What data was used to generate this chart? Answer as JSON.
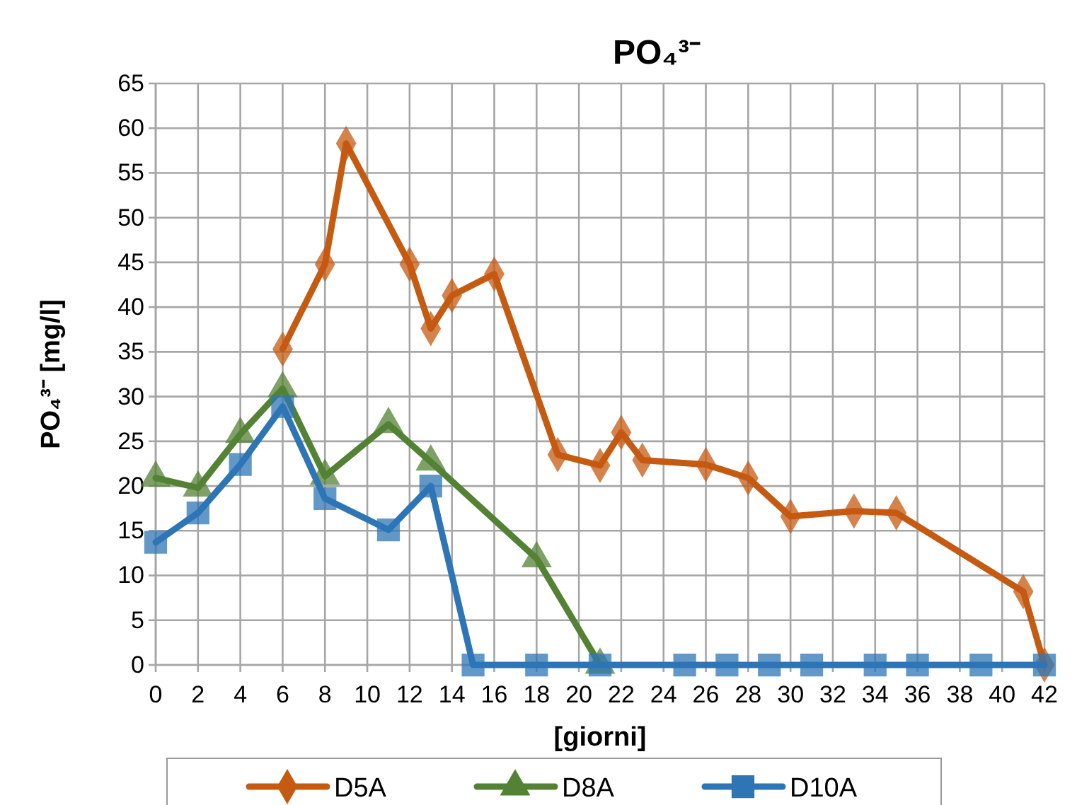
{
  "chart_data": {
    "type": "line",
    "title": "PO₄³⁻",
    "xlabel": "[giorni]",
    "ylabel": "PO₄³⁻ [mg/l]",
    "xlim": [
      0,
      42
    ],
    "xticks": [
      0,
      2,
      4,
      6,
      8,
      10,
      12,
      14,
      16,
      18,
      20,
      22,
      24,
      26,
      28,
      30,
      32,
      34,
      36,
      38,
      40,
      42
    ],
    "ylim": [
      0,
      65
    ],
    "yticks": [
      0,
      5,
      10,
      15,
      20,
      25,
      30,
      35,
      40,
      45,
      50,
      55,
      60,
      65
    ],
    "grid": true,
    "legend": "bottom",
    "line_style": "solid",
    "series": [
      {
        "name": "D5A",
        "color": "#c55a11",
        "marker": "diamond",
        "x": [
          6,
          8,
          9,
          12,
          13,
          14,
          16,
          19,
          21,
          22,
          23,
          26,
          28,
          30,
          33,
          35,
          41,
          42
        ],
        "values": [
          35.3,
          44.8,
          58.3,
          44.8,
          37.6,
          41.3,
          43.7,
          23.5,
          22.3,
          26,
          22.9,
          22.4,
          20.9,
          16.6,
          17.2,
          17,
          8.2,
          0
        ]
      },
      {
        "name": "D8A",
        "color": "#548235",
        "marker": "triangle",
        "x": [
          0,
          2,
          4,
          6,
          8,
          11,
          13,
          18,
          21
        ],
        "values": [
          20.9,
          19.8,
          25.8,
          30.9,
          21.1,
          26.9,
          22.7,
          11.9,
          0
        ]
      },
      {
        "name": "D10A",
        "color": "#2e75b6",
        "marker": "square",
        "x": [
          0,
          2,
          4,
          6,
          8,
          11,
          13,
          15,
          18,
          21,
          25,
          27,
          29,
          31,
          34,
          36,
          39,
          42
        ],
        "values": [
          13.7,
          17,
          22.4,
          28.9,
          18.6,
          15.1,
          20,
          0,
          0,
          0,
          0,
          0,
          0,
          0,
          0,
          0,
          0,
          0
        ]
      }
    ]
  }
}
